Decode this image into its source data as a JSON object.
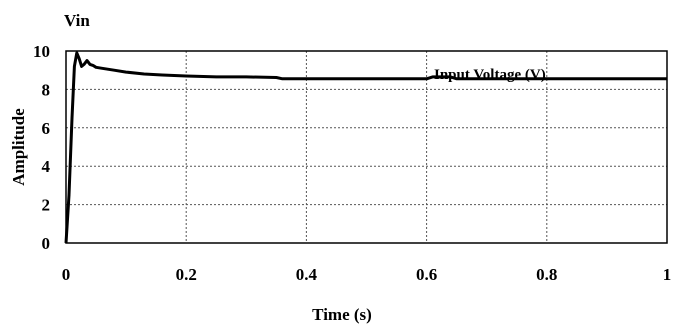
{
  "chart_data": {
    "type": "line",
    "title": "Vin",
    "xlabel": "Time (s)",
    "ylabel": "Amplitude",
    "xlim": [
      0,
      1
    ],
    "ylim": [
      0,
      10
    ],
    "x_ticks": [
      "0",
      "0.2",
      "0.4",
      "0.6",
      "0.8",
      "1"
    ],
    "y_ticks": [
      "0",
      "2",
      "4",
      "6",
      "8",
      "10"
    ],
    "grid": true,
    "annotation": "Input Voltage (V)",
    "series": [
      {
        "color": "#000000",
        "x": [
          0,
          0.005,
          0.01,
          0.014,
          0.018,
          0.022,
          0.026,
          0.03,
          0.035,
          0.04,
          0.045,
          0.05,
          0.06,
          0.08,
          0.1,
          0.13,
          0.16,
          0.2,
          0.25,
          0.3,
          0.35,
          0.36,
          0.4,
          0.5,
          0.6,
          0.61,
          0.64,
          0.65,
          0.7,
          0.8,
          0.9,
          1.0
        ],
        "y": [
          0,
          2.5,
          6.5,
          9.2,
          9.9,
          9.6,
          9.2,
          9.3,
          9.5,
          9.3,
          9.25,
          9.15,
          9.1,
          9.0,
          8.9,
          8.8,
          8.75,
          8.7,
          8.65,
          8.65,
          8.62,
          8.55,
          8.55,
          8.55,
          8.55,
          8.65,
          8.65,
          8.55,
          8.55,
          8.55,
          8.55,
          8.55
        ]
      }
    ]
  }
}
